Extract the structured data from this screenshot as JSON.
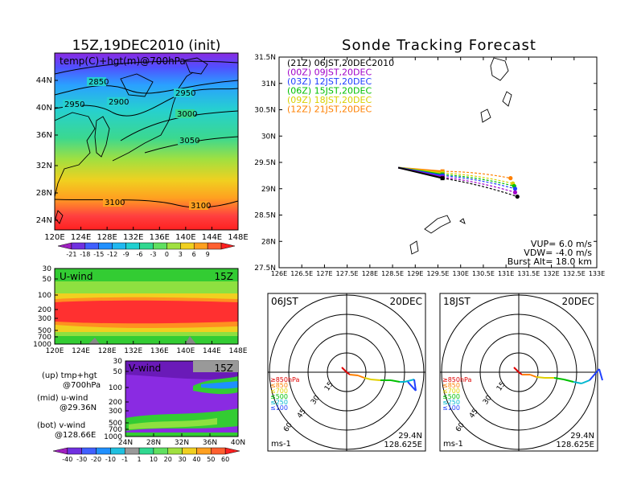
{
  "left": {
    "title": "15Z,19DEC2010 (init)",
    "map": {
      "label": "temp(C)+hgt(m)@700hPa",
      "lat_ticks": [
        "44N",
        "40N",
        "36N",
        "32N",
        "28N",
        "24N"
      ],
      "lon_ticks": [
        "120E",
        "124E",
        "128E",
        "132E",
        "136E",
        "140E",
        "144E",
        "148E"
      ],
      "contour_labels": [
        "2850",
        "2900",
        "2950",
        "2950",
        "3000",
        "3050",
        "3100",
        "3100"
      ],
      "colorbar_ticks": [
        "-21",
        "-18",
        "-15",
        "-12",
        "-9",
        "-6",
        "-3",
        "0",
        "3",
        "6",
        "9"
      ]
    },
    "uwind": {
      "label": "U-wind",
      "time": "15Z",
      "p_ticks": [
        "30",
        "50",
        "100",
        "200",
        "300",
        "500",
        "700",
        "1000"
      ],
      "lon_ticks": [
        "120E",
        "124E",
        "128E",
        "132E",
        "136E",
        "140E",
        "144E",
        "148E"
      ]
    },
    "vwind": {
      "label": "V-wind",
      "time": "15Z",
      "p_ticks": [
        "30",
        "50",
        "100",
        "200",
        "300",
        "500",
        "700",
        "1000"
      ],
      "lat_ticks": [
        "24N",
        "28N",
        "32N",
        "36N",
        "40N"
      ]
    },
    "legend": {
      "up": "(up) tmp+hgt",
      "up_sub": "@700hPa",
      "mid": "(mid) u-wind",
      "mid_sub": "@29.36N",
      "bot": "(bot) v-wind",
      "bot_sub": "@128.66E"
    },
    "wind_colorbar_ticks": [
      "-40",
      "-30",
      "-20",
      "-10",
      "-1",
      "1",
      "10",
      "20",
      "30",
      "40",
      "50",
      "60"
    ]
  },
  "right": {
    "title": "Sonde Tracking Forecast",
    "track_map": {
      "lat_ticks": [
        "31.5N",
        "31N",
        "30.5N",
        "30N",
        "29.5N",
        "29N",
        "28.5N",
        "28N",
        "27.5N"
      ],
      "lon_ticks": [
        "126E",
        "126.5E",
        "127E",
        "127.5E",
        "128E",
        "128.5E",
        "129E",
        "129.5E",
        "130E",
        "130.5E",
        "131E",
        "131.5E",
        "132E",
        "132.5E",
        "133E"
      ],
      "info": [
        "VUP= 6.0 m/s",
        "VDW= -4.0 m/s",
        "Burst Alt= 18.0 km"
      ]
    },
    "chart_data": {
      "type": "line",
      "title": "Sonde Tracking Forecast",
      "xlim": [
        126,
        133
      ],
      "ylim": [
        27.5,
        31.5
      ],
      "launch": {
        "lon": 128.625,
        "lat": 29.4
      },
      "series": [
        {
          "name": "(21Z) 06JST,20DEC2010",
          "color": "#000000",
          "burst": {
            "lon": 129.6,
            "lat": 29.2
          },
          "land": {
            "lon": 131.25,
            "lat": 28.85
          }
        },
        {
          "name": "(00Z) 09JST,20DEC",
          "color": "#a000c8",
          "burst": {
            "lon": 129.6,
            "lat": 29.22
          },
          "land": {
            "lon": 131.2,
            "lat": 28.93
          }
        },
        {
          "name": "(03Z) 12JST,20DEC",
          "color": "#2040ff",
          "burst": {
            "lon": 129.6,
            "lat": 29.25
          },
          "land": {
            "lon": 131.2,
            "lat": 29.0
          }
        },
        {
          "name": "(06Z) 15JST,20DEC",
          "color": "#00c000",
          "burst": {
            "lon": 129.6,
            "lat": 29.27
          },
          "land": {
            "lon": 131.18,
            "lat": 29.05
          }
        },
        {
          "name": "(09Z) 18JST,20DEC",
          "color": "#d8d000",
          "burst": {
            "lon": 129.6,
            "lat": 29.3
          },
          "land": {
            "lon": 131.15,
            "lat": 29.1
          }
        },
        {
          "name": "(12Z) 21JST,20DEC",
          "color": "#ff8000",
          "burst": {
            "lon": 129.6,
            "lat": 29.33
          },
          "land": {
            "lon": 131.1,
            "lat": 29.2
          }
        }
      ]
    },
    "polar1": {
      "time": "06JST",
      "date": "20DEC",
      "unit": "ms-1",
      "lat": "29.4N",
      "lon": "128.625E",
      "rings": [
        "15",
        "30",
        "45",
        "60"
      ]
    },
    "polar2": {
      "time": "18JST",
      "date": "20DEC",
      "unit": "ms-1",
      "lat": "29.4N",
      "lon": "128.625E",
      "rings": [
        "15",
        "30",
        "45",
        "60"
      ]
    },
    "hodo_legend": [
      {
        "label": "≥850hPa",
        "color": "#e00000"
      },
      {
        "label": "≤850",
        "color": "#ff8000"
      },
      {
        "label": "≤700",
        "color": "#e0d000"
      },
      {
        "label": "≤500",
        "color": "#00c000"
      },
      {
        "label": "≤250",
        "color": "#00b8d0"
      },
      {
        "label": "≤100",
        "color": "#2040ff"
      }
    ]
  }
}
